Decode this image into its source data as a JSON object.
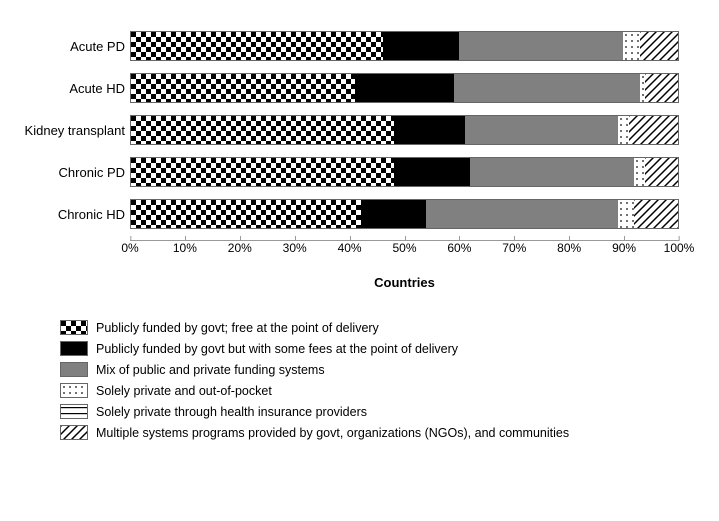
{
  "chart": {
    "type": "stacked-bar-horizontal",
    "xlabel": "Countries",
    "xlim": [
      0,
      100
    ],
    "xtick_step": 10,
    "ticks": [
      "0%",
      "10%",
      "20%",
      "30%",
      "40%",
      "50%",
      "60%",
      "70%",
      "80%",
      "90%",
      "100%"
    ],
    "background_color": "#ffffff",
    "bar_border_color": "#666666",
    "categories": [
      {
        "label": "Acute PD",
        "values": [
          46,
          14,
          30,
          3,
          0,
          7
        ]
      },
      {
        "label": "Acute HD",
        "values": [
          41,
          18,
          34,
          1,
          0,
          6
        ]
      },
      {
        "label": "Kidney transplant",
        "values": [
          48,
          13,
          28,
          2,
          0,
          9
        ]
      },
      {
        "label": "Chronic PD",
        "values": [
          48,
          14,
          30,
          2,
          0,
          6
        ]
      },
      {
        "label": "Chronic HD",
        "values": [
          42,
          12,
          35,
          3,
          0,
          8
        ]
      }
    ],
    "series": [
      {
        "key": "public_free",
        "pattern": "p-checker",
        "label": "Publicly funded by govt; free at the point of delivery"
      },
      {
        "key": "public_some_fee",
        "pattern": "p-solid-black",
        "label": "Publicly funded by govt but with some fees at the point of delivery"
      },
      {
        "key": "mix",
        "pattern": "p-solid-grey",
        "label": "Mix of public and private funding systems"
      },
      {
        "key": "private_oop",
        "pattern": "p-dots",
        "label": "Solely private and out-of-pocket"
      },
      {
        "key": "private_ins",
        "pattern": "p-hlines",
        "label": "Solely private through health insurance providers"
      },
      {
        "key": "multiple",
        "pattern": "p-diag",
        "label": "Multiple systems  programs provided by govt, organizations (NGOs), and communities"
      }
    ],
    "label_fontsize": 13,
    "tick_fontsize": 12,
    "legend_fontsize": 12.5
  }
}
